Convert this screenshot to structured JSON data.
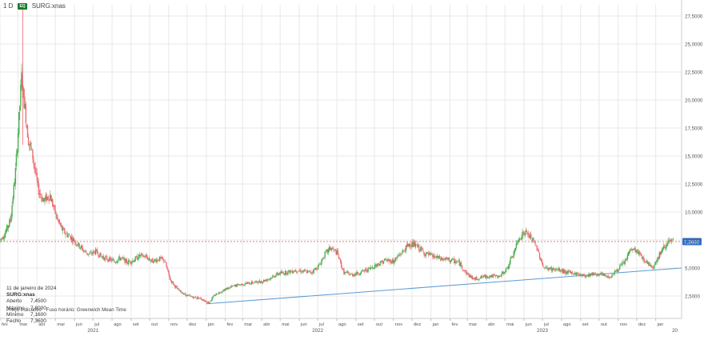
{
  "header": {
    "interval": "1 D",
    "exchange_badge": "EQ",
    "symbol": "SURG:xnas"
  },
  "info": {
    "date": "11 de janeiro de 2024",
    "symbol": "SURG:xnas",
    "rows": [
      {
        "label": "Aberto",
        "value": "7,4500"
      },
      {
        "label": "Máximo",
        "value": "7,8000"
      },
      {
        "label": "Mínimo",
        "value": "7,1600"
      },
      {
        "label": "Fecho",
        "value": "7,3600"
      }
    ]
  },
  "footer": {
    "indicative": "Preço indicativo",
    "timezone": "Fuso horário: Greenwich Mean Time"
  },
  "colors": {
    "up": "#4caf50",
    "down": "#ef6b73",
    "trendline": "#5b9bd5",
    "last_price_line": "#e07070",
    "last_price_tag": "#2f6fd0",
    "grid": "#e8e8e8"
  },
  "chart_data": {
    "type": "candlestick",
    "y_ticks": [
      "2,5000",
      "5,0000",
      "7,5000",
      "10,0000",
      "12,5000",
      "15,0000",
      "17,5000",
      "20,0000",
      "22,5000",
      "25,0000",
      "27,5000"
    ],
    "y_tick_values": [
      2.5,
      5,
      7.5,
      10,
      12.5,
      15,
      17.5,
      20,
      22.5,
      25,
      27.5
    ],
    "ylim": [
      0.5,
      28.5
    ],
    "last_price": {
      "value": 7.36,
      "label": "7,3600"
    },
    "month_ticks": [
      {
        "label": "fev",
        "date": "2020-02-01"
      },
      {
        "label": "mar",
        "date": "2020-03-01"
      },
      {
        "label": "abr",
        "date": "2020-04-01"
      },
      {
        "label": "mai",
        "date": "2020-05-01"
      },
      {
        "label": "jun",
        "date": "2020-06-01"
      },
      {
        "label": "jul",
        "date": "2020-07-01"
      },
      {
        "label": "ago",
        "date": "2020-08-01"
      },
      {
        "label": "set",
        "date": "2020-09-01"
      },
      {
        "label": "out",
        "date": "2020-10-01"
      },
      {
        "label": "nov",
        "date": "2020-11-01"
      },
      {
        "label": "dez",
        "date": "2020-12-01"
      },
      {
        "label": "jan",
        "date": "2021-01-01"
      },
      {
        "label": "fev",
        "date": "2021-02-01"
      },
      {
        "label": "mar",
        "date": "2021-03-01"
      },
      {
        "label": "abr",
        "date": "2021-04-01"
      },
      {
        "label": "mai",
        "date": "2021-05-01"
      },
      {
        "label": "jun",
        "date": "2021-06-01"
      },
      {
        "label": "jul",
        "date": "2021-07-01"
      },
      {
        "label": "ago",
        "date": "2021-08-01"
      },
      {
        "label": "set",
        "date": "2021-09-01"
      },
      {
        "label": "out",
        "date": "2021-10-01"
      },
      {
        "label": "nov",
        "date": "2021-11-01"
      },
      {
        "label": "dez",
        "date": "2021-12-01"
      },
      {
        "label": "jan",
        "date": "2022-01-01"
      },
      {
        "label": "fev",
        "date": "2022-02-01"
      },
      {
        "label": "mar",
        "date": "2022-03-01"
      },
      {
        "label": "abr",
        "date": "2022-04-01"
      },
      {
        "label": "mai",
        "date": "2022-05-01"
      },
      {
        "label": "jun",
        "date": "2022-06-01"
      },
      {
        "label": "jul",
        "date": "2022-07-01"
      },
      {
        "label": "ago",
        "date": "2022-08-01"
      },
      {
        "label": "set",
        "date": "2022-09-01"
      },
      {
        "label": "out",
        "date": "2022-10-01"
      },
      {
        "label": "nov",
        "date": "2022-11-01"
      },
      {
        "label": "dez",
        "date": "2022-12-01"
      },
      {
        "label": "jan",
        "date": "2023-01-01"
      }
    ],
    "year_ticks": [
      {
        "label": "2021",
        "date": "2020-07-01"
      },
      {
        "label": "2022",
        "date": "2021-07-01"
      },
      {
        "label": "2023",
        "date": "2022-07-01"
      },
      {
        "label": "20",
        "date": "2023-02-01"
      }
    ],
    "x_start": "2020-02-01",
    "x_end": "2023-02-12",
    "trendline": [
      {
        "date": "2021-01-01",
        "value": 1.8
      },
      {
        "date": "2023-02-12",
        "value": 5.0
      }
    ],
    "price_path": [
      {
        "date": "2020-02-01",
        "value": 7.5
      },
      {
        "date": "2020-02-10",
        "value": 8.2
      },
      {
        "date": "2020-02-18",
        "value": 9.3
      },
      {
        "date": "2020-02-26",
        "value": 13.5
      },
      {
        "date": "2020-03-03",
        "value": 18.5
      },
      {
        "date": "2020-03-07",
        "value": 22.0
      },
      {
        "date": "2020-03-12",
        "value": 19.5
      },
      {
        "date": "2020-03-18",
        "value": 16.5
      },
      {
        "date": "2020-03-25",
        "value": 15.0
      },
      {
        "date": "2020-04-03",
        "value": 12.0
      },
      {
        "date": "2020-04-12",
        "value": 11.0
      },
      {
        "date": "2020-04-22",
        "value": 11.5
      },
      {
        "date": "2020-05-03",
        "value": 9.5
      },
      {
        "date": "2020-05-13",
        "value": 8.3
      },
      {
        "date": "2020-05-25",
        "value": 7.8
      },
      {
        "date": "2020-06-05",
        "value": 7.2
      },
      {
        "date": "2020-06-15",
        "value": 6.6
      },
      {
        "date": "2020-06-25",
        "value": 6.2
      },
      {
        "date": "2020-07-05",
        "value": 6.5
      },
      {
        "date": "2020-07-15",
        "value": 6.0
      },
      {
        "date": "2020-07-25",
        "value": 5.8
      },
      {
        "date": "2020-08-05",
        "value": 5.6
      },
      {
        "date": "2020-08-15",
        "value": 5.9
      },
      {
        "date": "2020-08-25",
        "value": 5.5
      },
      {
        "date": "2020-09-05",
        "value": 5.7
      },
      {
        "date": "2020-09-15",
        "value": 6.1
      },
      {
        "date": "2020-09-25",
        "value": 6.0
      },
      {
        "date": "2020-10-05",
        "value": 5.6
      },
      {
        "date": "2020-10-15",
        "value": 5.8
      },
      {
        "date": "2020-10-25",
        "value": 5.7
      },
      {
        "date": "2020-11-03",
        "value": 4.0
      },
      {
        "date": "2020-11-15",
        "value": 3.1
      },
      {
        "date": "2020-11-28",
        "value": 2.6
      },
      {
        "date": "2020-12-10",
        "value": 2.4
      },
      {
        "date": "2020-12-22",
        "value": 2.3
      },
      {
        "date": "2021-01-05",
        "value": 1.9
      },
      {
        "date": "2021-01-15",
        "value": 2.6
      },
      {
        "date": "2021-01-28",
        "value": 3.0
      },
      {
        "date": "2021-02-10",
        "value": 3.3
      },
      {
        "date": "2021-02-22",
        "value": 3.5
      },
      {
        "date": "2021-03-05",
        "value": 3.6
      },
      {
        "date": "2021-03-18",
        "value": 3.7
      },
      {
        "date": "2021-04-01",
        "value": 3.8
      },
      {
        "date": "2021-04-15",
        "value": 4.1
      },
      {
        "date": "2021-04-28",
        "value": 4.5
      },
      {
        "date": "2021-05-10",
        "value": 4.6
      },
      {
        "date": "2021-05-25",
        "value": 4.8
      },
      {
        "date": "2021-06-08",
        "value": 4.7
      },
      {
        "date": "2021-06-20",
        "value": 4.6
      },
      {
        "date": "2021-07-03",
        "value": 5.2
      },
      {
        "date": "2021-07-12",
        "value": 6.2
      },
      {
        "date": "2021-07-22",
        "value": 6.8
      },
      {
        "date": "2021-08-02",
        "value": 6.3
      },
      {
        "date": "2021-08-12",
        "value": 4.6
      },
      {
        "date": "2021-08-25",
        "value": 4.4
      },
      {
        "date": "2021-09-08",
        "value": 4.6
      },
      {
        "date": "2021-09-22",
        "value": 4.9
      },
      {
        "date": "2021-10-05",
        "value": 5.3
      },
      {
        "date": "2021-10-18",
        "value": 5.7
      },
      {
        "date": "2021-11-01",
        "value": 5.6
      },
      {
        "date": "2021-11-15",
        "value": 6.4
      },
      {
        "date": "2021-11-28",
        "value": 7.2
      },
      {
        "date": "2021-12-10",
        "value": 6.9
      },
      {
        "date": "2021-12-22",
        "value": 6.3
      },
      {
        "date": "2022-01-05",
        "value": 6.0
      },
      {
        "date": "2022-01-18",
        "value": 5.8
      },
      {
        "date": "2022-02-01",
        "value": 5.7
      },
      {
        "date": "2022-02-15",
        "value": 5.5
      },
      {
        "date": "2022-02-28",
        "value": 4.5
      },
      {
        "date": "2022-03-12",
        "value": 4.0
      },
      {
        "date": "2022-03-25",
        "value": 4.2
      },
      {
        "date": "2022-04-08",
        "value": 4.3
      },
      {
        "date": "2022-04-22",
        "value": 4.2
      },
      {
        "date": "2022-05-05",
        "value": 5.0
      },
      {
        "date": "2022-05-15",
        "value": 6.3
      },
      {
        "date": "2022-05-25",
        "value": 7.8
      },
      {
        "date": "2022-06-03",
        "value": 8.2
      },
      {
        "date": "2022-06-12",
        "value": 7.7
      },
      {
        "date": "2022-06-22",
        "value": 6.8
      },
      {
        "date": "2022-07-03",
        "value": 5.0
      },
      {
        "date": "2022-07-15",
        "value": 4.9
      },
      {
        "date": "2022-07-28",
        "value": 4.8
      },
      {
        "date": "2022-08-10",
        "value": 4.6
      },
      {
        "date": "2022-08-25",
        "value": 4.5
      },
      {
        "date": "2022-09-08",
        "value": 4.3
      },
      {
        "date": "2022-09-22",
        "value": 4.5
      },
      {
        "date": "2022-10-05",
        "value": 4.4
      },
      {
        "date": "2022-10-18",
        "value": 4.2
      },
      {
        "date": "2022-11-01",
        "value": 4.9
      },
      {
        "date": "2022-11-12",
        "value": 5.6
      },
      {
        "date": "2022-11-22",
        "value": 6.7
      },
      {
        "date": "2022-12-03",
        "value": 6.4
      },
      {
        "date": "2022-12-15",
        "value": 5.6
      },
      {
        "date": "2022-12-28",
        "value": 5.1
      },
      {
        "date": "2023-01-08",
        "value": 6.3
      },
      {
        "date": "2023-01-20",
        "value": 7.3
      },
      {
        "date": "2023-01-30",
        "value": 7.36
      }
    ]
  }
}
